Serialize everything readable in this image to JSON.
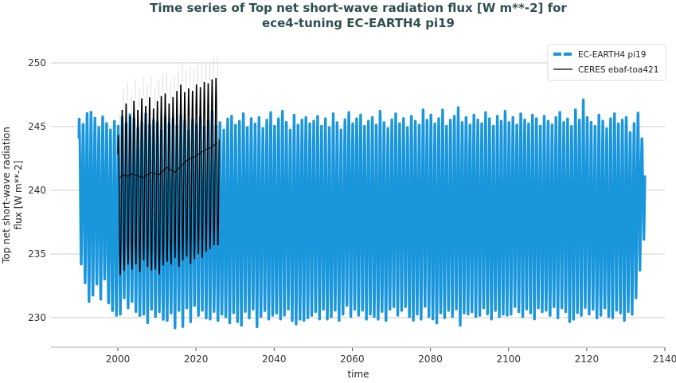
{
  "chart_data": {
    "type": "line",
    "title": [
      "Time series of Top net short-wave radiation flux [W m**-2] for",
      "ece4-tuning EC-EARTH4 pi19"
    ],
    "xlabel": "time",
    "ylabel": [
      "Top net short-wave radiation",
      "flux [W m**-2]"
    ],
    "xlim": [
      1984,
      2140
    ],
    "ylim": [
      227.7,
      251.5
    ],
    "xticks": [
      2000,
      2020,
      2040,
      2060,
      2080,
      2100,
      2120,
      2140
    ],
    "yticks": [
      230,
      235,
      240,
      245,
      250
    ],
    "grid": "horizontal",
    "legend_position": "top-right",
    "colors": {
      "model": "#1a96dc",
      "obs": "#000000",
      "grid": "#cccccc"
    },
    "series": [
      {
        "name": "EC-EARTH4 pi19",
        "style": "dashed",
        "note_values": "annual max and min of monthly values",
        "start_year": 1990,
        "annual_max": [
          245.8,
          245.4,
          246.3,
          246.4,
          245.9,
          245.2,
          246.0,
          245.5,
          245.0,
          245.7,
          245.3,
          246.0,
          245.5,
          246.2,
          245.9,
          245.1,
          245.6,
          246.3,
          245.4,
          245.8,
          245.6,
          245.0,
          246.1,
          245.5,
          245.9,
          245.3,
          246.2,
          245.7,
          245.0,
          245.8,
          245.4,
          246.0,
          245.2,
          245.8,
          246.5,
          245.3,
          245.6,
          245.0,
          245.9,
          246.1,
          245.4,
          245.7,
          246.3,
          245.2,
          245.9,
          245.5,
          246.0,
          245.1,
          245.8,
          246.4,
          245.3,
          245.9,
          246.5,
          245.6,
          245.0,
          246.2,
          245.4,
          245.8,
          246.0,
          245.5,
          245.7,
          246.1,
          245.3,
          245.9,
          245.2,
          246.3,
          245.6,
          245.0,
          245.8,
          246.4,
          245.5,
          245.9,
          246.2,
          245.3,
          245.7,
          246.0,
          245.4,
          246.5,
          245.6,
          245.1,
          245.8,
          246.3,
          245.5,
          245.9,
          245.2,
          246.1,
          245.7,
          245.4,
          246.6,
          245.8,
          246.2,
          245.5,
          245.9,
          246.6,
          245.3,
          245.8,
          246.1,
          246.8,
          245.6,
          246.0,
          245.4,
          246.2,
          245.8,
          245.5,
          246.4,
          245.9,
          245.3,
          246.1,
          245.7,
          246.5,
          245.6,
          246.0,
          245.4,
          246.3,
          245.8,
          245.5,
          246.2,
          245.9,
          245.3,
          246.1,
          245.7,
          245.4,
          246.0,
          246.4,
          245.6,
          245.9,
          245.3,
          246.6,
          245.8,
          247.4,
          246.0,
          245.6,
          245.3,
          246.2,
          245.7,
          245.1,
          245.9,
          246.3,
          245.5,
          245.8,
          246.0,
          244.8,
          245.5,
          246.3,
          244.2
        ],
        "annual_min": [
          234.0,
          232.5,
          231.0,
          231.5,
          232.4,
          231.2,
          232.8,
          230.9,
          230.3,
          229.9,
          230.0,
          231.3,
          230.5,
          231.0,
          230.2,
          229.9,
          230.0,
          229.3,
          230.4,
          229.8,
          230.2,
          229.6,
          229.5,
          230.1,
          228.9,
          230.3,
          229.0,
          230.5,
          229.4,
          230.7,
          229.9,
          230.3,
          229.7,
          229.6,
          230.2,
          229.5,
          230.0,
          229.8,
          229.3,
          230.1,
          229.4,
          229.1,
          230.2,
          229.7,
          230.4,
          229.0,
          229.8,
          230.3,
          229.6,
          229.9,
          230.1,
          229.6,
          229.9,
          230.4,
          229.5,
          229.2,
          229.6,
          229.5,
          229.7,
          229.9,
          230.2,
          229.6,
          230.4,
          229.6,
          229.8,
          230.3,
          229.5,
          230.0,
          230.7,
          229.8,
          230.4,
          229.9,
          230.3,
          229.6,
          230.0,
          229.8,
          229.6,
          230.2,
          229.5,
          230.4,
          230.6,
          229.9,
          230.3,
          230.6,
          229.8,
          229.5,
          230.0,
          229.6,
          230.6,
          229.8,
          229.6,
          229.3,
          230.1,
          229.7,
          230.3,
          229.8,
          230.4,
          229.1,
          230.1,
          230.0,
          230.2,
          229.8,
          229.9,
          230.5,
          230.0,
          229.6,
          230.3,
          229.8,
          230.0,
          229.9,
          230.0,
          230.6,
          230.2,
          229.8,
          230.4,
          230.1,
          229.6,
          230.5,
          230.2,
          230.3,
          229.9,
          230.6,
          229.7,
          230.5,
          230.2,
          229.4,
          229.6,
          230.1,
          229.9,
          230.5,
          230.0,
          230.4,
          229.7,
          229.9,
          230.5,
          229.8,
          229.7,
          230.3,
          230.1,
          229.5,
          230.2,
          230.0,
          231.3,
          233.5,
          236.0
        ]
      },
      {
        "name": "CERES ebaf-toa421",
        "style": "solid",
        "start_year": 2000,
        "annual_max": [
          244.5,
          246.5,
          247.0,
          246.0,
          247.2,
          246.5,
          247.4,
          246.8,
          247.5,
          246.6,
          247.2,
          247.6,
          247.8,
          247.0,
          247.5,
          248.0,
          248.5,
          247.9,
          248.2,
          248.0,
          248.5,
          248.3,
          248.7,
          248.6,
          248.9,
          249.0
        ],
        "annual_min": [
          233.2,
          233.5,
          234.0,
          233.6,
          234.0,
          233.4,
          234.3,
          233.8,
          233.5,
          233.6,
          233.2,
          233.9,
          234.2,
          234.0,
          234.5,
          233.8,
          234.3,
          234.6,
          234.0,
          234.4,
          234.8,
          234.5,
          235.0,
          235.2,
          235.5,
          235.5
        ],
        "running_mean": [
          241.0,
          241.2,
          241.1,
          241.3,
          241.2,
          241.1,
          241.0,
          241.2,
          241.4,
          241.3,
          241.2,
          241.5,
          241.8,
          241.6,
          241.4,
          241.7,
          242.0,
          242.3,
          242.5,
          242.6,
          242.8,
          243.0,
          243.2,
          243.3,
          243.5,
          243.8
        ]
      }
    ]
  }
}
